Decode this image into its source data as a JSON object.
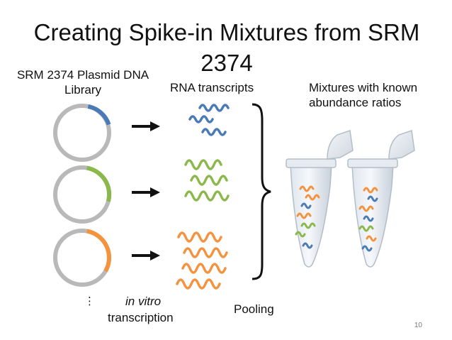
{
  "slide": {
    "title": "Creating Spike-in Mixtures from SRM 2374",
    "plasmid_label": "SRM 2374 Plasmid DNA Library",
    "rna_label": "RNA transcripts",
    "mixtures_label": "Mixtures with known abundance ratios",
    "invitro_label": "in vitro",
    "transcription_label": "transcription",
    "pooling_label": "Pooling",
    "ellipsis": "⋮",
    "page_number": "10"
  },
  "colors": {
    "blue": "#4a7bb7",
    "green": "#8ab84a",
    "orange": "#f5923e",
    "circle_gray": "#b9b9b9"
  },
  "icons": [
    "plasmid-icon",
    "arrow-right-icon",
    "rna-squiggle-icon",
    "brace-icon",
    "tube-icon"
  ]
}
